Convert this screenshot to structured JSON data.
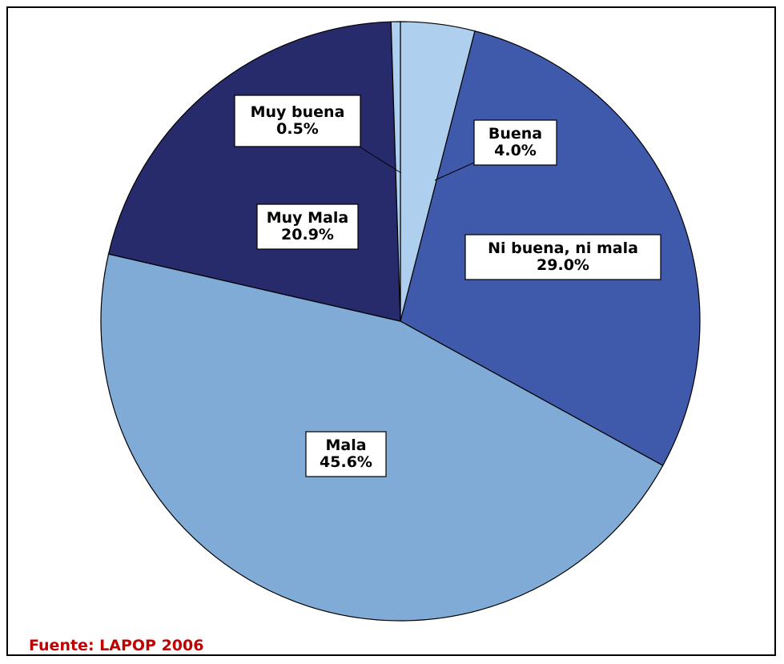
{
  "chart_data": {
    "type": "pie",
    "slices": [
      {
        "label": "Buena",
        "value": 4.0,
        "display": "4.0%",
        "color": "#aed0ee"
      },
      {
        "label": "Ni buena, ni mala",
        "value": 29.0,
        "display": "29.0%",
        "color": "#3f5aaa"
      },
      {
        "label": "Mala",
        "value": 45.6,
        "display": "45.6%",
        "color": "#7fabd6"
      },
      {
        "label": "Muy Mala",
        "value": 20.9,
        "display": "20.9%",
        "color": "#272a6b"
      },
      {
        "label": "Muy buena",
        "value": 0.5,
        "display": "0.5%",
        "color": "#aed0ee"
      }
    ],
    "start": "12 o'clock",
    "direction": "clockwise"
  },
  "source": "Fuente: LAPOP 2006",
  "colors": {
    "source_text": "#c00000",
    "outline": "#000000"
  }
}
